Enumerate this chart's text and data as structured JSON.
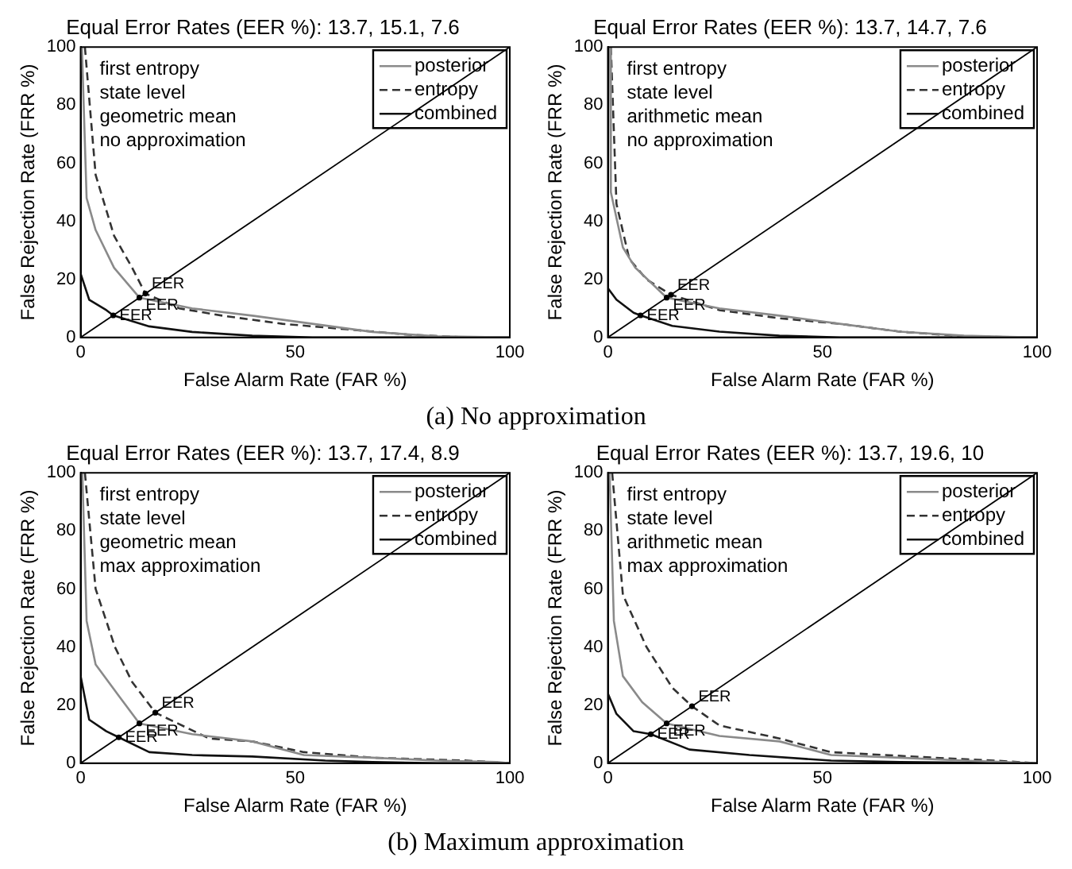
{
  "chart_data": [
    {
      "type": "line",
      "title": "Equal Error Rates (EER %): 13.7, 15.1, 7.6",
      "xlabel": "False Alarm Rate (FAR %)",
      "ylabel": "False Rejection Rate (FRR %)",
      "xlim": [
        0,
        100
      ],
      "ylim": [
        0,
        100
      ],
      "xticks": [
        0,
        50,
        100
      ],
      "yticks": [
        0,
        20,
        40,
        60,
        80,
        100
      ],
      "grid": false,
      "legend": "top right",
      "marker": "none",
      "annotations": [
        "first entropy",
        "state level",
        "geometric mean",
        "no approximation",
        {
          "text": "EER",
          "x": 13.7,
          "y": 13.7
        },
        {
          "text": "EER",
          "x": 15.1,
          "y": 15.1
        },
        {
          "text": "EER",
          "x": 7.6,
          "y": 7.6
        }
      ],
      "series": [
        {
          "name": "posterior",
          "color": "#8a8a8a",
          "line_style": "solid",
          "x": [
            0.3,
            1.4,
            3.5,
            7.8,
            13.7,
            26,
            40,
            54,
            68,
            83,
            100
          ],
          "values": [
            100,
            48,
            37,
            24,
            13.7,
            10,
            7.5,
            4.7,
            1.9,
            0.4,
            0
          ]
        },
        {
          "name": "entropy",
          "color": "#333333",
          "line_style": "dashed",
          "x": [
            1,
            3.5,
            7.8,
            12,
            15.1,
            23,
            33,
            47,
            62,
            76,
            90
          ],
          "values": [
            100,
            56,
            35,
            24,
            15.1,
            10,
            7.5,
            4.7,
            2.8,
            1,
            0
          ]
        },
        {
          "name": "combined",
          "color": "#111111",
          "line_style": "solid",
          "x": [
            0,
            2,
            6,
            7.6,
            16,
            26,
            40,
            54,
            100
          ],
          "values": [
            22,
            13,
            9.4,
            7.6,
            3.8,
            1.9,
            0.6,
            0,
            0
          ]
        },
        {
          "color": "#000000",
          "line_style": "solid",
          "x": [
            0,
            100
          ],
          "values": [
            0,
            100
          ]
        }
      ]
    },
    {
      "type": "line",
      "title": "Equal Error Rates (EER %): 13.7, 14.7, 7.6",
      "xlabel": "False Alarm Rate (FAR %)",
      "ylabel": "False Rejection Rate (FRR %)",
      "xlim": [
        0,
        100
      ],
      "ylim": [
        0,
        100
      ],
      "xticks": [
        0,
        50,
        100
      ],
      "yticks": [
        0,
        20,
        40,
        60,
        80,
        100
      ],
      "grid": false,
      "legend": "top right",
      "marker": "none",
      "annotations": [
        "first entropy",
        "state level",
        "arithmetic mean",
        "no approximation",
        {
          "text": "EER",
          "x": 13.7,
          "y": 13.7
        },
        {
          "text": "EER",
          "x": 14.7,
          "y": 14.7
        },
        {
          "text": "EER",
          "x": 7.6,
          "y": 7.6
        }
      ],
      "series": [
        {
          "name": "posterior",
          "color": "#8a8a8a",
          "line_style": "solid",
          "x": [
            0.5,
            0.7,
            3.5,
            6.4,
            13.7,
            26,
            40,
            54,
            68,
            83,
            100
          ],
          "values": [
            100,
            50,
            31,
            24,
            13.7,
            10,
            7.5,
            4.7,
            2,
            0.6,
            0
          ]
        },
        {
          "name": "entropy",
          "color": "#333333",
          "line_style": "dashed",
          "x": [
            0.7,
            2,
            5,
            9,
            14.7,
            26,
            40,
            54,
            68,
            83,
            97
          ],
          "values": [
            100,
            46,
            27,
            20,
            14.7,
            9.4,
            6.6,
            4.7,
            2,
            0.4,
            0
          ]
        },
        {
          "name": "combined",
          "color": "#111111",
          "line_style": "solid",
          "x": [
            0,
            2,
            6,
            7.6,
            15,
            26,
            40,
            54,
            100
          ],
          "values": [
            17,
            13,
            8.5,
            7.6,
            4,
            2,
            0.6,
            0,
            0
          ]
        },
        {
          "color": "#000000",
          "line_style": "solid",
          "x": [
            0,
            100
          ],
          "values": [
            0,
            100
          ]
        }
      ]
    },
    {
      "type": "other",
      "title": "(a) No approximation"
    },
    {
      "type": "line",
      "title": "Equal Error Rates (EER %): 13.7, 17.4, 8.9",
      "xlabel": "False Alarm Rate (FAR %)",
      "ylabel": "False Rejection Rate (FRR %)",
      "xlim": [
        0,
        100
      ],
      "ylim": [
        0,
        100
      ],
      "xticks": [
        0,
        50,
        100
      ],
      "yticks": [
        0,
        20,
        40,
        60,
        80,
        100
      ],
      "grid": false,
      "legend": "top right",
      "marker": "none",
      "annotations": [
        "first entropy",
        "state level",
        "geometric mean",
        "max approximation",
        {
          "text": "EER",
          "x": 13.7,
          "y": 13.7
        },
        {
          "text": "EER",
          "x": 17.4,
          "y": 17.4
        },
        {
          "text": "EER",
          "x": 8.9,
          "y": 8.9
        }
      ],
      "series": [
        {
          "name": "posterior",
          "color": "#8a8a8a",
          "line_style": "solid",
          "x": [
            0.4,
            1.4,
            3.5,
            9,
            13.7,
            26,
            40,
            52,
            68,
            83,
            97,
            100
          ],
          "values": [
            100,
            49,
            34,
            23,
            13.7,
            10,
            7.5,
            2.8,
            1.9,
            0.9,
            0.4,
            0
          ]
        },
        {
          "name": "entropy",
          "color": "#333333",
          "line_style": "dashed",
          "x": [
            1,
            3.5,
            8,
            12,
            17.4,
            30,
            40,
            52,
            68,
            90,
            100
          ],
          "values": [
            100,
            60,
            40,
            28,
            17.4,
            8.5,
            7.5,
            3.8,
            1.9,
            0.9,
            0
          ]
        },
        {
          "name": "combined",
          "color": "#111111",
          "line_style": "solid",
          "x": [
            0,
            2,
            6,
            8.9,
            16,
            26,
            40,
            57,
            68,
            83,
            100
          ],
          "values": [
            30,
            15,
            11,
            8.9,
            3.8,
            2.8,
            2.3,
            0.9,
            0.4,
            0,
            0
          ]
        },
        {
          "color": "#000000",
          "line_style": "solid",
          "x": [
            0,
            100
          ],
          "values": [
            0,
            100
          ]
        }
      ]
    },
    {
      "type": "line",
      "title": "Equal Error Rates (EER %): 13.7, 19.6, 10",
      "xlabel": "False Alarm Rate (FAR %)",
      "ylabel": "False Rejection Rate (FRR %)",
      "xlim": [
        0,
        100
      ],
      "ylim": [
        0,
        100
      ],
      "xticks": [
        0,
        50,
        100
      ],
      "yticks": [
        0,
        20,
        40,
        60,
        80,
        100
      ],
      "grid": false,
      "legend": "top right",
      "marker": "none",
      "annotations": [
        "first entropy",
        "state level",
        "arithmetic mean",
        "max approximation",
        {
          "text": "EER",
          "x": 13.7,
          "y": 13.7
        },
        {
          "text": "EER",
          "x": 19.6,
          "y": 19.6
        },
        {
          "text": "EER",
          "x": 10,
          "y": 10
        }
      ],
      "series": [
        {
          "name": "posterior",
          "color": "#8a8a8a",
          "line_style": "solid",
          "x": [
            0.4,
            1.4,
            3.5,
            8,
            13.7,
            26,
            40,
            52,
            68,
            83,
            100
          ],
          "values": [
            100,
            49,
            30,
            21,
            13.7,
            9.4,
            7.5,
            2.8,
            1.9,
            0.9,
            0
          ]
        },
        {
          "name": "entropy",
          "color": "#333333",
          "line_style": "dashed",
          "x": [
            1,
            3.5,
            9,
            15,
            19.6,
            26,
            40,
            52,
            76,
            90,
            100
          ],
          "values": [
            100,
            58,
            40,
            26,
            19.6,
            13,
            8.5,
            3.8,
            1.9,
            0.9,
            0
          ]
        },
        {
          "name": "combined",
          "color": "#111111",
          "line_style": "solid",
          "x": [
            0,
            2,
            6,
            10,
            19,
            33,
            52,
            68,
            100
          ],
          "values": [
            24,
            17,
            11,
            10,
            4.7,
            2.8,
            0.9,
            0.4,
            0
          ]
        },
        {
          "color": "#000000",
          "line_style": "solid",
          "x": [
            0,
            100
          ],
          "values": [
            0,
            100
          ]
        }
      ]
    },
    {
      "type": "other",
      "title": "(b) Maximum approximation"
    }
  ]
}
